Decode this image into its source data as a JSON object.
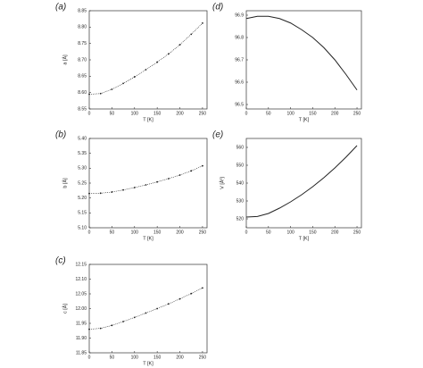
{
  "chart_data": [
    {
      "type": "line",
      "label": "(a)",
      "ylabel": "a [Å]",
      "xlabel": "T [K]",
      "markers": true,
      "x": [
        0,
        25,
        50,
        75,
        100,
        125,
        150,
        175,
        200,
        225,
        250
      ],
      "series": [
        {
          "color": "#222222",
          "values": [
            8.595,
            8.597,
            8.61,
            8.628,
            8.648,
            8.67,
            8.693,
            8.718,
            8.746,
            8.778,
            8.812
          ]
        }
      ],
      "xlim": [
        0,
        260
      ],
      "xticks": [
        0,
        50,
        100,
        150,
        200,
        250
      ],
      "ylim": [
        8.55,
        8.85
      ],
      "yticks": [
        8.55,
        {
          "value": 8.6,
          "label": "8.60"
        },
        8.65,
        {
          "value": 8.7,
          "label": "8.70"
        },
        8.75,
        {
          "value": 8.8,
          "label": "8.80"
        },
        8.85
      ]
    },
    {
      "type": "line",
      "label": "(b)",
      "ylabel": "b [Å]",
      "xlabel": "T [K]",
      "markers": true,
      "x": [
        0,
        25,
        50,
        75,
        100,
        125,
        150,
        175,
        200,
        225,
        250
      ],
      "series": [
        {
          "color": "#222222",
          "values": [
            5.215,
            5.216,
            5.22,
            5.227,
            5.235,
            5.244,
            5.254,
            5.265,
            5.277,
            5.291,
            5.308
          ]
        }
      ],
      "xlim": [
        0,
        260
      ],
      "xticks": [
        0,
        50,
        100,
        150,
        200,
        250
      ],
      "ylim": [
        5.1,
        5.4
      ],
      "yticks": [
        {
          "value": 5.1,
          "label": "5.10"
        },
        5.15,
        {
          "value": 5.2,
          "label": "5.20"
        },
        5.25,
        {
          "value": 5.3,
          "label": "5.30"
        },
        5.35,
        {
          "value": 5.4,
          "label": "5.40"
        }
      ]
    },
    {
      "type": "line",
      "label": "(c)",
      "ylabel": "c [Å]",
      "xlabel": "T [K]",
      "markers": true,
      "x": [
        0,
        25,
        50,
        75,
        100,
        125,
        150,
        175,
        200,
        225,
        250
      ],
      "series": [
        {
          "color": "#222222",
          "values": [
            11.93,
            11.933,
            11.943,
            11.956,
            11.97,
            11.985,
            12.0,
            12.016,
            12.033,
            12.051,
            12.07
          ]
        }
      ],
      "xlim": [
        0,
        260
      ],
      "xticks": [
        0,
        50,
        100,
        150,
        200,
        250
      ],
      "ylim": [
        11.85,
        12.15
      ],
      "yticks": [
        11.85,
        {
          "value": 11.9,
          "label": "11.90"
        },
        11.95,
        {
          "value": 12.0,
          "label": "12.00"
        },
        12.05,
        {
          "value": 12.1,
          "label": "12.10"
        },
        12.15
      ]
    },
    {
      "type": "line",
      "label": "(d)",
      "xlabel": "T [K]",
      "markers": false,
      "x": [
        0,
        25,
        50,
        75,
        100,
        125,
        150,
        175,
        200,
        225,
        250
      ],
      "series": [
        {
          "color": "#222222",
          "values": [
            96.885,
            96.895,
            96.895,
            96.885,
            96.865,
            96.835,
            96.8,
            96.755,
            96.7,
            96.635,
            96.565
          ]
        }
      ],
      "xlim": [
        0,
        260
      ],
      "xticks": [
        0,
        50,
        100,
        150,
        200,
        250
      ],
      "ylim": [
        96.48,
        96.92
      ],
      "yticks": [
        96.5,
        96.6,
        96.7,
        96.8,
        96.9
      ]
    },
    {
      "type": "line",
      "label": "(e)",
      "ylabel": "V [Å³]",
      "xlabel": "T [K]",
      "markers": false,
      "x": [
        0,
        25,
        50,
        75,
        100,
        125,
        150,
        175,
        200,
        225,
        250
      ],
      "series": [
        {
          "color": "#222222",
          "values": [
            521,
            521.3,
            523,
            526,
            529.5,
            533.5,
            538,
            543,
            548.5,
            554.5,
            561
          ]
        }
      ],
      "xlim": [
        0,
        260
      ],
      "xticks": [
        0,
        50,
        100,
        150,
        200,
        250
      ],
      "ylim": [
        515,
        565
      ],
      "yticks": [
        520,
        530,
        540,
        550,
        560
      ]
    }
  ]
}
